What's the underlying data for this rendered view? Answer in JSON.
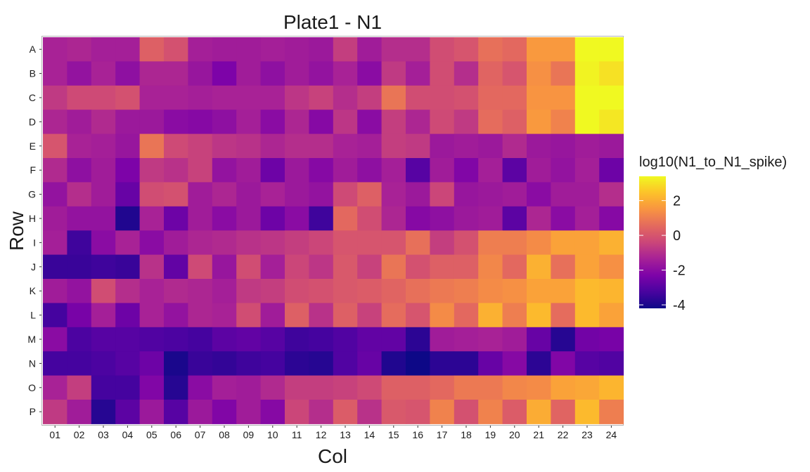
{
  "chart_data": {
    "type": "heatmap",
    "title": "Plate1 - N1",
    "xlabel": "Col",
    "ylabel": "Row",
    "x_categories": [
      "01",
      "02",
      "03",
      "04",
      "05",
      "06",
      "07",
      "08",
      "09",
      "10",
      "11",
      "12",
      "13",
      "14",
      "15",
      "16",
      "17",
      "18",
      "19",
      "20",
      "21",
      "22",
      "23",
      "24"
    ],
    "y_categories": [
      "A",
      "B",
      "C",
      "D",
      "E",
      "F",
      "G",
      "H",
      "I",
      "J",
      "K",
      "L",
      "M",
      "N",
      "O",
      "P"
    ],
    "legend": {
      "title": "log10(N1_to_N1_spike)",
      "ticks": [
        2,
        0,
        -2,
        -4
      ],
      "tick_labels": [
        "2",
        "0",
        "-2",
        "-4"
      ],
      "range": [
        -4.2,
        3.4
      ],
      "colormap": "plasma"
    },
    "values": [
      [
        -1.3,
        -1.2,
        -1.4,
        -1.4,
        0.3,
        -0.1,
        -1.4,
        -1.5,
        -1.5,
        -1.4,
        -1.5,
        -1.6,
        -0.6,
        -1.5,
        -1.0,
        -1.0,
        -0.2,
        0.0,
        0.7,
        0.5,
        1.6,
        1.6,
        3.4,
        3.4
      ],
      [
        -1.3,
        -1.8,
        -1.3,
        -1.9,
        -1.2,
        -1.2,
        -1.7,
        -2.3,
        -1.5,
        -1.9,
        -1.5,
        -1.8,
        -1.3,
        -2.0,
        -0.7,
        -1.4,
        -0.2,
        -1.0,
        0.4,
        0.0,
        1.4,
        0.8,
        3.3,
        3.0
      ],
      [
        -0.7,
        -0.3,
        -0.3,
        -0.1,
        -1.3,
        -1.3,
        -1.4,
        -1.3,
        -1.3,
        -1.3,
        -0.8,
        -0.5,
        -1.0,
        -0.6,
        0.8,
        -0.2,
        -0.2,
        -0.1,
        0.5,
        0.5,
        1.5,
        1.5,
        3.4,
        3.4
      ],
      [
        -1.2,
        -1.5,
        -1.1,
        -1.6,
        -1.6,
        -2.0,
        -2.1,
        -1.9,
        -1.4,
        -2.0,
        -1.2,
        -2.1,
        -0.8,
        -2.0,
        -0.6,
        -1.2,
        -0.3,
        -0.7,
        0.6,
        0.3,
        1.6,
        1.1,
        3.4,
        3.1
      ],
      [
        0.0,
        -1.3,
        -1.4,
        -1.7,
        0.8,
        -0.3,
        -0.5,
        -0.8,
        -0.9,
        -1.2,
        -1.0,
        -1.0,
        -1.3,
        -1.4,
        -0.6,
        -0.7,
        -1.6,
        -1.5,
        -1.6,
        -1.1,
        -1.6,
        -1.7,
        -1.5,
        -1.6
      ],
      [
        -1.1,
        -1.9,
        -1.5,
        -2.3,
        -0.7,
        -0.9,
        -0.5,
        -1.8,
        -1.5,
        -2.6,
        -1.6,
        -2.1,
        -1.5,
        -1.9,
        -1.4,
        -3.0,
        -1.5,
        -2.2,
        -1.4,
        -2.9,
        -1.5,
        -1.8,
        -1.4,
        -2.6
      ],
      [
        -1.8,
        -1.0,
        -1.5,
        -2.7,
        -0.2,
        -0.1,
        -1.5,
        -1.2,
        -1.6,
        -1.3,
        -1.6,
        -1.8,
        -0.3,
        0.3,
        -1.3,
        -1.6,
        -0.4,
        -1.7,
        -1.6,
        -1.5,
        -2.0,
        -1.5,
        -1.5,
        -1.0
      ],
      [
        -1.5,
        -1.8,
        -1.8,
        -3.9,
        -1.3,
        -2.6,
        -1.5,
        -2.0,
        -1.6,
        -2.6,
        -2.0,
        -3.4,
        0.5,
        -0.2,
        -1.2,
        -2.1,
        -1.9,
        -1.6,
        -1.5,
        -2.9,
        -1.2,
        -2.0,
        -1.4,
        -2.1
      ],
      [
        -1.4,
        -3.4,
        -2.0,
        -1.3,
        -2.0,
        -1.5,
        -1.2,
        -1.1,
        -0.9,
        -0.8,
        -0.6,
        -0.4,
        0.0,
        0.0,
        0.0,
        0.7,
        -0.6,
        -0.1,
        1.0,
        1.0,
        1.3,
        1.8,
        1.8,
        2.1
      ],
      [
        -3.5,
        -3.5,
        -3.4,
        -3.5,
        -0.9,
        -2.8,
        -0.3,
        -1.7,
        -0.2,
        -1.4,
        -0.4,
        -0.8,
        0.1,
        -0.5,
        0.8,
        -0.1,
        0.3,
        0.3,
        1.2,
        0.5,
        2.1,
        0.7,
        1.8,
        1.4
      ],
      [
        -1.5,
        -1.8,
        -0.2,
        -1.0,
        -1.3,
        -1.1,
        -1.2,
        -1.4,
        -0.7,
        -0.6,
        -0.2,
        -0.1,
        0.1,
        0.2,
        0.4,
        0.7,
        0.9,
        1.0,
        1.3,
        1.4,
        1.8,
        1.8,
        2.3,
        2.2
      ],
      [
        -3.3,
        -2.4,
        -1.4,
        -2.6,
        -1.3,
        -1.8,
        -1.2,
        -1.3,
        -0.2,
        -1.5,
        0.3,
        -0.9,
        0.3,
        -0.5,
        0.6,
        0.0,
        1.3,
        0.5,
        2.1,
        1.0,
        2.3,
        0.6,
        2.3,
        1.8
      ],
      [
        -2.0,
        -3.2,
        -3.0,
        -3.0,
        -3.1,
        -3.2,
        -3.3,
        -2.9,
        -2.8,
        -3.0,
        -3.4,
        -3.3,
        -3.1,
        -2.8,
        -2.8,
        -3.7,
        -1.5,
        -1.4,
        -1.3,
        -1.5,
        -2.7,
        -3.8,
        -2.5,
        -2.4
      ],
      [
        -3.3,
        -3.3,
        -3.2,
        -3.0,
        -2.6,
        -4.0,
        -3.5,
        -3.6,
        -3.4,
        -3.3,
        -3.7,
        -3.8,
        -3.1,
        -2.7,
        -3.9,
        -4.2,
        -3.7,
        -3.7,
        -2.7,
        -2.1,
        -3.7,
        -2.2,
        -3.0,
        -3.1
      ],
      [
        -1.3,
        -0.6,
        -3.3,
        -3.3,
        -2.2,
        -3.8,
        -2.0,
        -1.4,
        -1.5,
        -1.1,
        -0.6,
        -0.6,
        -0.5,
        -0.3,
        0.3,
        0.3,
        0.5,
        0.9,
        0.9,
        1.2,
        1.3,
        1.8,
        1.9,
        2.2
      ],
      [
        -0.7,
        -1.5,
        -3.8,
        -2.9,
        -1.6,
        -3.0,
        -1.6,
        -2.2,
        -1.5,
        -2.1,
        -0.4,
        -1.0,
        0.2,
        -0.9,
        0.1,
        0.0,
        1.1,
        -0.1,
        1.1,
        0.2,
        2.0,
        0.4,
        2.3,
        1.0
      ]
    ]
  }
}
